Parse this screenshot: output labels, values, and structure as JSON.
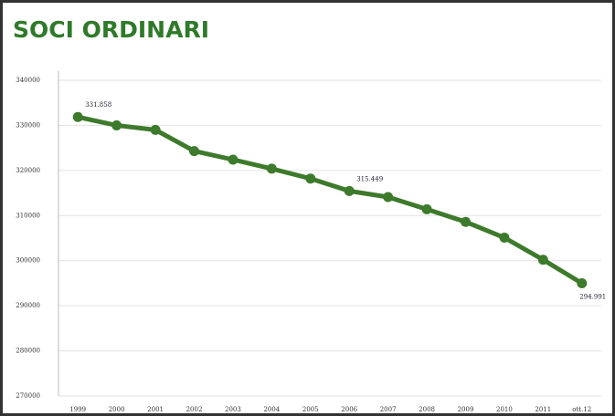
{
  "chart_data": {
    "type": "line",
    "title": "SOCI ORDINARI",
    "categories": [
      "1999",
      "2000",
      "2001",
      "2002",
      "2003",
      "2004",
      "2005",
      "2006",
      "2007",
      "2008",
      "2009",
      "2010",
      "2011",
      "ott.12"
    ],
    "series": [
      {
        "name": "Soci ordinari",
        "color": "#3d7a2c",
        "values": [
          331858,
          330000,
          329000,
          324300,
          322400,
          320400,
          318200,
          315449,
          314100,
          311400,
          308600,
          305100,
          300200,
          294991
        ],
        "value_labels": [
          "331.858",
          null,
          null,
          null,
          null,
          null,
          null,
          "315.449",
          null,
          null,
          null,
          null,
          null,
          "294.991"
        ]
      }
    ],
    "ylim": [
      270000,
      340000
    ],
    "yticks": [
      270000,
      280000,
      290000,
      300000,
      310000,
      320000,
      330000,
      340000
    ],
    "grid": true
  }
}
